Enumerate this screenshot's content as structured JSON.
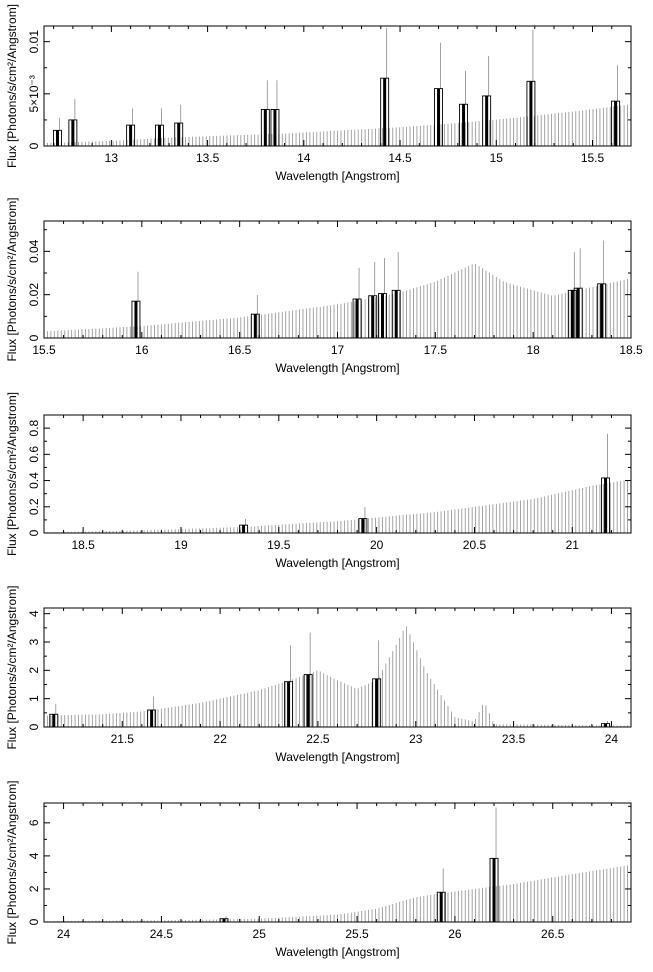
{
  "chart_data": [
    {
      "type": "line",
      "xlabel": "Wavelength [Angstrom]",
      "ylabel": "Flux [Photons/s/cm²/Angstrom]",
      "xlim": [
        12.65,
        15.7
      ],
      "ylim": [
        0,
        0.0115
      ],
      "xticks": [
        13,
        13.5,
        14,
        14.5,
        15,
        15.5
      ],
      "xtick_labels": [
        "13",
        "13.5",
        "14",
        "14.5",
        "15",
        "15.5"
      ],
      "yticks": [
        0,
        0.005,
        0.01
      ],
      "ytick_labels": [
        "0",
        "5×10⁻³",
        "0.01"
      ],
      "series": [
        {
          "x": [
            12.7,
            13.0,
            13.3,
            13.6,
            13.9,
            14.2,
            14.5,
            14.8,
            15.1,
            15.4,
            15.7
          ],
          "y": [
            0.0003,
            0.0005,
            0.0008,
            0.001,
            0.0012,
            0.0015,
            0.0018,
            0.0022,
            0.0027,
            0.0033,
            0.004
          ]
        },
        {
          "x": [
            12.72,
            12.8,
            13.1,
            13.25,
            13.35,
            13.8,
            13.85,
            14.42,
            14.7,
            14.83,
            14.95,
            15.18,
            15.62
          ],
          "y": [
            0.0015,
            0.0025,
            0.002,
            0.002,
            0.0022,
            0.0035,
            0.0035,
            0.0065,
            0.0055,
            0.004,
            0.0048,
            0.0062,
            0.0043
          ]
        }
      ]
    },
    {
      "type": "line",
      "xlabel": "Wavelength [Angstrom]",
      "ylabel": "Flux [Photons/s/cm²/Angstrom]",
      "xlim": [
        15.5,
        18.5
      ],
      "ylim": [
        0,
        0.054
      ],
      "xticks": [
        15.5,
        16,
        16.5,
        17,
        17.5,
        18,
        18.5
      ],
      "xtick_labels": [
        "15.5",
        "16",
        "16.5",
        "17",
        "17.5",
        "18",
        "18.5"
      ],
      "yticks": [
        0,
        0.02,
        0.04
      ],
      "ytick_labels": [
        "0",
        "0.02",
        "0.04"
      ],
      "series": [
        {
          "x": [
            15.5,
            16.0,
            16.5,
            17.0,
            17.3,
            17.5,
            17.7,
            17.85,
            18.0,
            18.1,
            18.3,
            18.5
          ],
          "y": [
            0.003,
            0.0055,
            0.0095,
            0.0155,
            0.0205,
            0.026,
            0.0345,
            0.026,
            0.022,
            0.0195,
            0.0235,
            0.0275
          ]
        },
        {
          "x": [
            15.97,
            16.58,
            17.1,
            17.18,
            17.23,
            17.3,
            18.2,
            18.23,
            18.35
          ],
          "y": [
            0.017,
            0.011,
            0.018,
            0.0195,
            0.0205,
            0.022,
            0.022,
            0.023,
            0.025
          ]
        }
      ]
    },
    {
      "type": "line",
      "xlabel": "Wavelength [Angstrom]",
      "ylabel": "Flux [Photons/s/cm²/Angstrom]",
      "xlim": [
        18.3,
        21.3
      ],
      "ylim": [
        0,
        0.9
      ],
      "xticks": [
        18.5,
        19,
        19.5,
        20,
        20.5,
        21
      ],
      "xtick_labels": [
        "18.5",
        "19",
        "19.5",
        "20",
        "20.5",
        "21"
      ],
      "yticks": [
        0,
        0.2,
        0.4,
        0.6,
        0.8
      ],
      "ytick_labels": [
        "0",
        "0.2",
        "0.4",
        "0.6",
        "0.8"
      ],
      "series": [
        {
          "x": [
            18.3,
            18.8,
            19.3,
            19.8,
            20.3,
            20.8,
            21.1,
            21.3
          ],
          "y": [
            0.005,
            0.02,
            0.045,
            0.09,
            0.16,
            0.26,
            0.36,
            0.41
          ]
        },
        {
          "x": [
            19.32,
            19.93,
            21.17
          ],
          "y": [
            0.06,
            0.11,
            0.42
          ]
        }
      ]
    },
    {
      "type": "line",
      "xlabel": "Wavelength [Angstrom]",
      "ylabel": "Flux [Photons/s/cm²/Angstrom]",
      "xlim": [
        21.1,
        24.1
      ],
      "ylim": [
        0,
        4.2
      ],
      "xticks": [
        21.5,
        22,
        22.5,
        23,
        23.5,
        24
      ],
      "xtick_labels": [
        "21.5",
        "22",
        "22.5",
        "23",
        "23.5",
        "24"
      ],
      "yticks": [
        0,
        1,
        2,
        3,
        4
      ],
      "ytick_labels": [
        "0",
        "1",
        "2",
        "3",
        "4"
      ],
      "series": [
        {
          "x": [
            21.1,
            21.4,
            21.6,
            21.9,
            22.2,
            22.4,
            22.5,
            22.6,
            22.7,
            22.8,
            22.9,
            22.95,
            23.05,
            23.2,
            23.3,
            23.35,
            23.4,
            24.1
          ],
          "y": [
            0.4,
            0.45,
            0.55,
            0.85,
            1.3,
            1.75,
            2.0,
            1.65,
            1.35,
            1.65,
            2.9,
            3.6,
            2.0,
            0.35,
            0.2,
            0.9,
            0.1,
            0.05
          ]
        },
        {
          "x": [
            21.15,
            21.65,
            22.35,
            22.45,
            22.8,
            23.97
          ],
          "y": [
            0.45,
            0.6,
            1.6,
            1.85,
            1.7,
            0.12
          ]
        }
      ]
    },
    {
      "type": "line",
      "xlabel": "Wavelength [Angstrom]",
      "ylabel": "Flux [Photons/s/cm²/Angstrom]",
      "xlim": [
        23.9,
        26.9
      ],
      "ylim": [
        0,
        7.2
      ],
      "xticks": [
        24,
        24.5,
        25,
        25.5,
        26,
        26.5
      ],
      "xtick_labels": [
        "24",
        "24.5",
        "25",
        "25.5",
        "26",
        "26.5"
      ],
      "yticks": [
        0,
        2,
        4,
        6
      ],
      "ytick_labels": [
        "0",
        "2",
        "4",
        "6"
      ],
      "series": [
        {
          "x": [
            23.9,
            24.5,
            25.0,
            25.4,
            25.6,
            25.8,
            26.0,
            26.3,
            26.6,
            26.9
          ],
          "y": [
            0.05,
            0.1,
            0.2,
            0.45,
            0.8,
            1.5,
            1.85,
            2.3,
            2.9,
            3.45
          ]
        },
        {
          "x": [
            24.82,
            25.93,
            26.2
          ],
          "y": [
            0.2,
            1.8,
            3.85
          ]
        }
      ]
    }
  ]
}
